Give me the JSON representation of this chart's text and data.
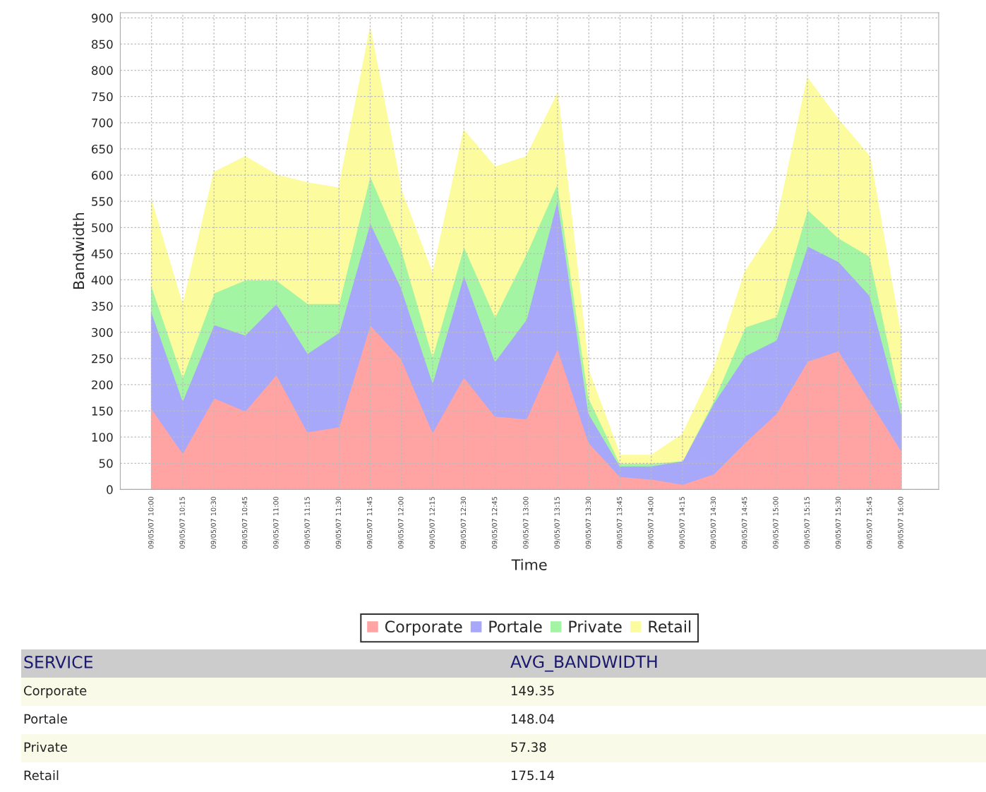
{
  "chart_data": {
    "type": "area",
    "stacked": true,
    "xlabel": "Time",
    "ylabel": "Bandwidth",
    "categories": [
      "09/05/07 10:00",
      "09/05/07 10:15",
      "09/05/07 10:30",
      "09/05/07 10:45",
      "09/05/07 11:00",
      "09/05/07 11:15",
      "09/05/07 11:30",
      "09/05/07 11:45",
      "09/05/07 12:00",
      "09/05/07 12:15",
      "09/05/07 12:30",
      "09/05/07 12:45",
      "09/05/07 13:00",
      "09/05/07 13:15",
      "09/05/07 13:30",
      "09/05/07 13:45",
      "09/05/07 14:00",
      "09/05/07 14:15",
      "09/05/07 14:30",
      "09/05/07 14:45",
      "09/05/07 15:00",
      "09/05/07 15:15",
      "09/05/07 15:30",
      "09/05/07 15:45",
      "09/05/07 16:00"
    ],
    "series": [
      {
        "name": "Corporate",
        "color": "#ffa3a3",
        "values": [
          155,
          70,
          175,
          150,
          220,
          110,
          120,
          315,
          250,
          110,
          215,
          140,
          135,
          270,
          90,
          25,
          20,
          10,
          30,
          90,
          145,
          245,
          265,
          170,
          75
        ]
      },
      {
        "name": "Portale",
        "color": "#a8a8fa",
        "values": [
          185,
          100,
          140,
          145,
          135,
          150,
          180,
          195,
          135,
          95,
          195,
          105,
          190,
          285,
          55,
          20,
          25,
          45,
          135,
          165,
          140,
          220,
          170,
          200,
          70
        ]
      },
      {
        "name": "Private",
        "color": "#a3f5a3",
        "values": [
          50,
          45,
          60,
          105,
          45,
          95,
          55,
          90,
          75,
          50,
          55,
          85,
          125,
          30,
          30,
          5,
          5,
          0,
          5,
          55,
          45,
          70,
          45,
          75,
          20
        ]
      },
      {
        "name": "Retail",
        "color": "#fcfc9e",
        "values": [
          160,
          135,
          230,
          235,
          200,
          230,
          220,
          280,
          110,
          155,
          220,
          285,
          185,
          170,
          50,
          15,
          15,
          50,
          60,
          105,
          175,
          250,
          225,
          190,
          125
        ]
      }
    ],
    "ylim": [
      0,
      910
    ],
    "yticks": [
      0,
      50,
      100,
      150,
      200,
      250,
      300,
      350,
      400,
      450,
      500,
      550,
      600,
      650,
      700,
      750,
      800,
      850,
      900
    ],
    "grid": true,
    "legend": "bottom",
    "annotations": [
      "SERVICE",
      "AVG_BANDWIDTH",
      "Corporate",
      "149.35",
      "Portale",
      "148.04",
      "Private",
      "57.38",
      "Retail",
      "175.14"
    ]
  }
}
